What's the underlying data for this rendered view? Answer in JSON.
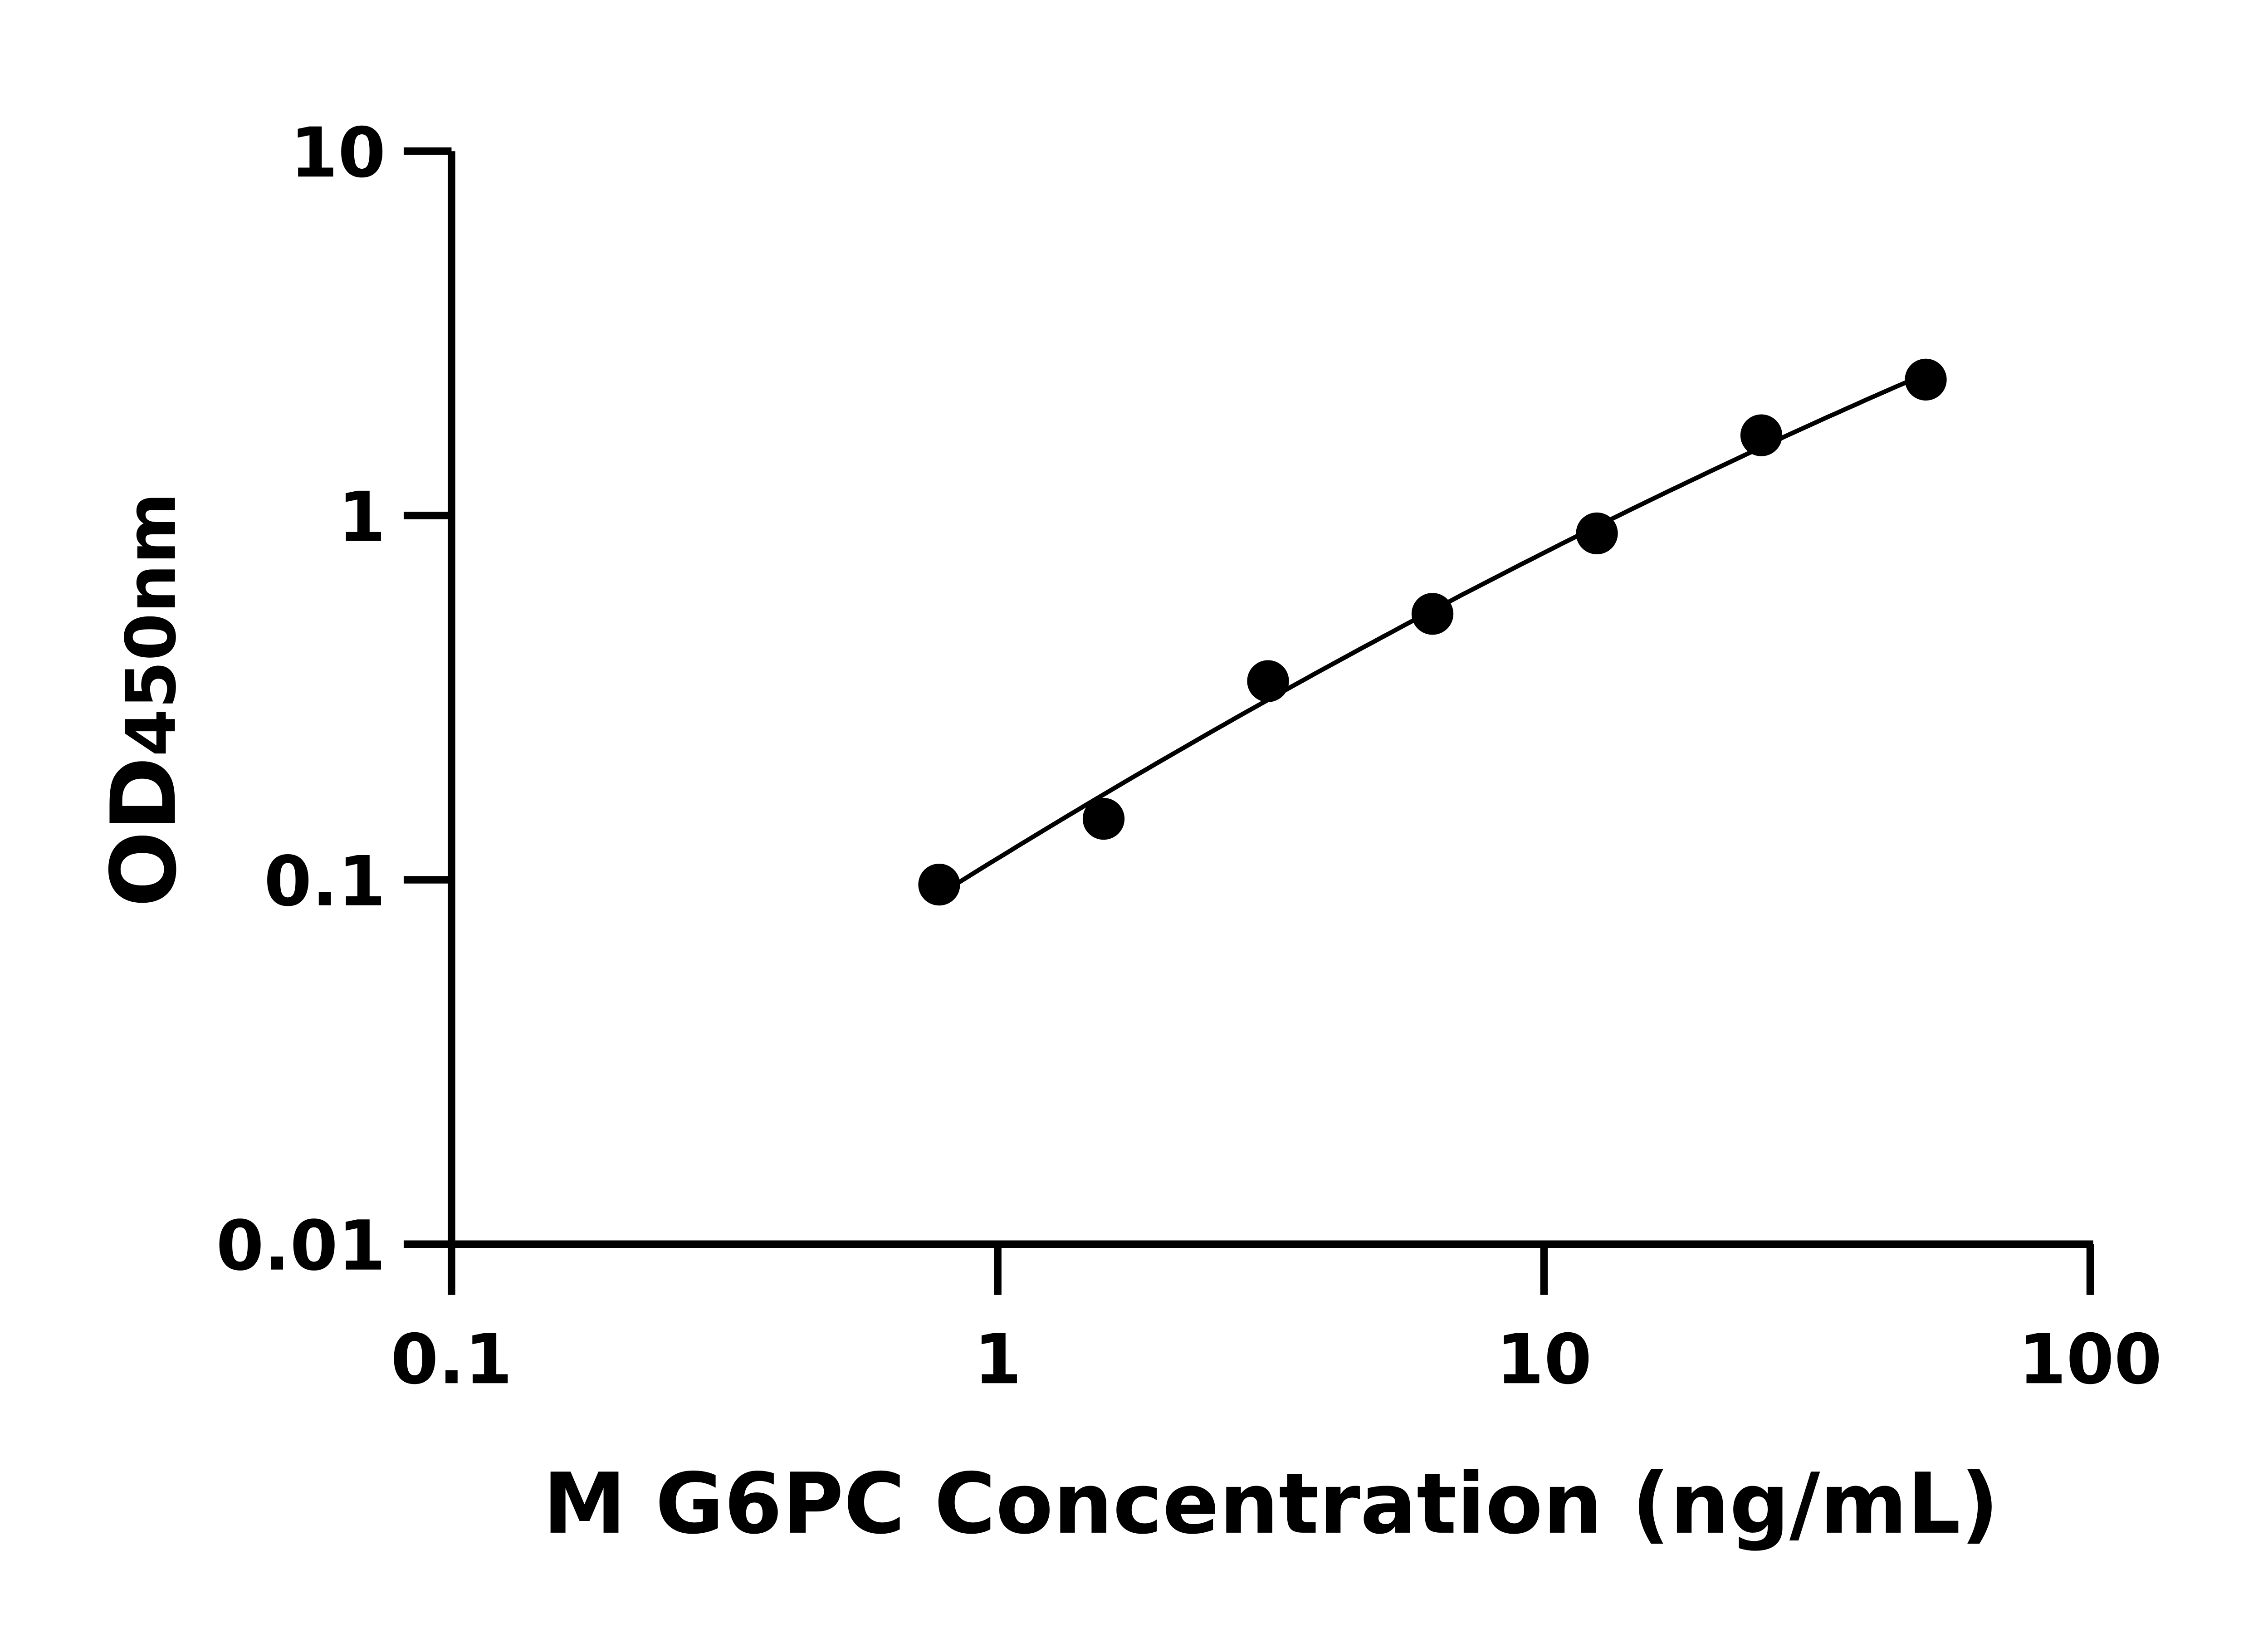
{
  "chart_data": {
    "type": "scatter",
    "title": "",
    "xlabel": "M G6PC Concentration (ng/mL)",
    "ylabel": {
      "main": "OD",
      "sub": "450nm"
    },
    "x_scale": "log",
    "y_scale": "log",
    "xlim": [
      0.1,
      100
    ],
    "ylim": [
      0.01,
      10
    ],
    "x_ticks": [
      0.1,
      1,
      10,
      100
    ],
    "x_tick_labels": [
      "0.1",
      "1",
      "10",
      "100"
    ],
    "y_ticks": [
      0.01,
      0.1,
      1,
      10
    ],
    "y_tick_labels": [
      "0.01",
      "0.1",
      "1",
      "10"
    ],
    "grid": false,
    "legend": "none",
    "fit_line": true,
    "series": [
      {
        "x": [
          0.78125,
          1.5625,
          3.125,
          6.25,
          12.5,
          25,
          50
        ],
        "y": [
          0.097,
          0.147,
          0.351,
          0.537,
          0.893,
          1.66,
          2.36
        ]
      }
    ],
    "colors": {
      "points": "#000000",
      "line": "#000000",
      "axes": "#000000"
    }
  }
}
